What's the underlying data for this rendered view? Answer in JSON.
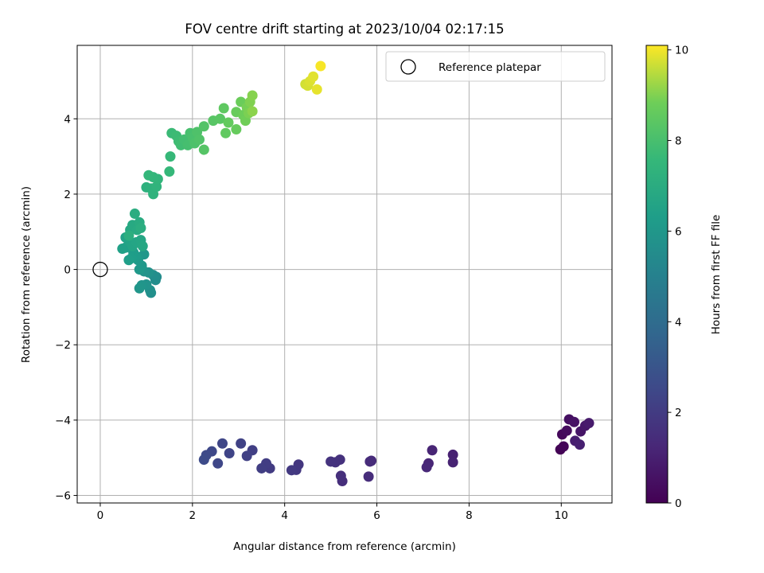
{
  "chart_data": {
    "type": "scatter",
    "title": "FOV centre drift starting at 2023/10/04 02:17:15",
    "xlabel": "Angular distance from reference (arcmin)",
    "ylabel": "Rotation from reference (arcmin)",
    "xlim": [
      -0.5,
      11.1
    ],
    "ylim": [
      -6.2,
      5.95
    ],
    "x_ticks": [
      0,
      2,
      4,
      6,
      8,
      10
    ],
    "y_ticks": [
      -6,
      -4,
      -2,
      0,
      2,
      4
    ],
    "x_tick_labels": [
      "0",
      "2",
      "4",
      "6",
      "8",
      "10"
    ],
    "y_tick_labels": [
      "−6",
      "−4",
      "−2",
      "0",
      "2",
      "4"
    ],
    "grid": true,
    "legend_position": "top-right",
    "reference": {
      "name": "Reference platepar",
      "x": 0,
      "y": 0
    },
    "colorbar": {
      "label": "Hours from first FF file",
      "range": [
        0,
        10.1
      ],
      "ticks": [
        0,
        2,
        4,
        6,
        8,
        10
      ],
      "tick_labels": [
        "0",
        "2",
        "4",
        "6",
        "8",
        "10"
      ],
      "colormap": "viridis"
    },
    "series": [
      {
        "points": [
          {
            "x": 9.98,
            "y": -4.78,
            "h": 0.05
          },
          {
            "x": 10.05,
            "y": -4.7,
            "h": 0.15
          },
          {
            "x": 10.02,
            "y": -4.38,
            "h": 0.25
          },
          {
            "x": 10.12,
            "y": -4.28,
            "h": 0.35
          },
          {
            "x": 10.17,
            "y": -3.98,
            "h": 0.45
          },
          {
            "x": 10.28,
            "y": -4.05,
            "h": 0.55
          },
          {
            "x": 10.42,
            "y": -4.3,
            "h": 0.65
          },
          {
            "x": 10.52,
            "y": -4.15,
            "h": 0.75
          },
          {
            "x": 10.6,
            "y": -4.08,
            "h": 0.85
          },
          {
            "x": 10.3,
            "y": -4.55,
            "h": 0.95
          },
          {
            "x": 10.4,
            "y": -4.65,
            "h": 1.0
          },
          {
            "x": 7.65,
            "y": -4.92,
            "h": 1.05
          },
          {
            "x": 7.65,
            "y": -5.12,
            "h": 1.1
          },
          {
            "x": 7.2,
            "y": -4.8,
            "h": 1.15
          },
          {
            "x": 7.12,
            "y": -5.15,
            "h": 1.2
          },
          {
            "x": 7.08,
            "y": -5.25,
            "h": 1.25
          },
          {
            "x": 5.88,
            "y": -5.08,
            "h": 1.35
          },
          {
            "x": 5.85,
            "y": -5.1,
            "h": 1.4
          },
          {
            "x": 5.82,
            "y": -5.5,
            "h": 1.45
          },
          {
            "x": 5.25,
            "y": -5.62,
            "h": 1.5
          },
          {
            "x": 5.22,
            "y": -5.48,
            "h": 1.55
          },
          {
            "x": 5.2,
            "y": -5.05,
            "h": 1.6
          },
          {
            "x": 5.1,
            "y": -5.12,
            "h": 1.65
          },
          {
            "x": 5.0,
            "y": -5.1,
            "h": 1.7
          },
          {
            "x": 4.3,
            "y": -5.18,
            "h": 1.8
          },
          {
            "x": 4.25,
            "y": -5.32,
            "h": 1.85
          },
          {
            "x": 4.15,
            "y": -5.33,
            "h": 1.9
          },
          {
            "x": 3.68,
            "y": -5.28,
            "h": 2.0
          },
          {
            "x": 3.6,
            "y": -5.15,
            "h": 2.05
          },
          {
            "x": 3.5,
            "y": -5.28,
            "h": 2.1
          },
          {
            "x": 3.3,
            "y": -4.8,
            "h": 2.15
          },
          {
            "x": 3.18,
            "y": -4.95,
            "h": 2.2
          },
          {
            "x": 3.05,
            "y": -4.62,
            "h": 2.25
          },
          {
            "x": 2.8,
            "y": -4.88,
            "h": 2.35
          },
          {
            "x": 2.65,
            "y": -4.62,
            "h": 2.4
          },
          {
            "x": 2.55,
            "y": -5.15,
            "h": 2.45
          },
          {
            "x": 2.42,
            "y": -4.83,
            "h": 2.5
          },
          {
            "x": 2.3,
            "y": -4.93,
            "h": 2.55
          },
          {
            "x": 2.25,
            "y": -5.05,
            "h": 2.6
          },
          {
            "x": 1.22,
            "y": -0.2,
            "h": 5.5
          },
          {
            "x": 1.2,
            "y": -0.28,
            "h": 5.55
          },
          {
            "x": 1.15,
            "y": -0.15,
            "h": 5.6
          },
          {
            "x": 1.1,
            "y": -0.62,
            "h": 5.65
          },
          {
            "x": 1.08,
            "y": -0.55,
            "h": 5.7
          },
          {
            "x": 1.05,
            "y": -0.08,
            "h": 5.75
          },
          {
            "x": 1.0,
            "y": -0.4,
            "h": 5.8
          },
          {
            "x": 0.95,
            "y": -0.05,
            "h": 5.85
          },
          {
            "x": 0.9,
            "y": -0.42,
            "h": 5.9
          },
          {
            "x": 0.85,
            "y": -0.5,
            "h": 5.95
          },
          {
            "x": 0.95,
            "y": 0.4,
            "h": 6.0
          },
          {
            "x": 0.9,
            "y": 0.1,
            "h": 6.05
          },
          {
            "x": 0.85,
            "y": 0.0,
            "h": 6.1
          },
          {
            "x": 0.82,
            "y": 0.25,
            "h": 6.15
          },
          {
            "x": 0.78,
            "y": 0.35,
            "h": 6.2
          },
          {
            "x": 0.72,
            "y": 0.45,
            "h": 6.25
          },
          {
            "x": 0.68,
            "y": 0.3,
            "h": 6.3
          },
          {
            "x": 0.62,
            "y": 0.25,
            "h": 6.35
          },
          {
            "x": 0.55,
            "y": 0.58,
            "h": 6.4
          },
          {
            "x": 0.48,
            "y": 0.55,
            "h": 6.45
          },
          {
            "x": 0.55,
            "y": 0.85,
            "h": 6.5
          },
          {
            "x": 0.62,
            "y": 0.75,
            "h": 6.55
          },
          {
            "x": 0.7,
            "y": 0.62,
            "h": 6.6
          },
          {
            "x": 0.78,
            "y": 0.72,
            "h": 6.65
          },
          {
            "x": 0.88,
            "y": 0.78,
            "h": 6.7
          },
          {
            "x": 0.92,
            "y": 0.62,
            "h": 6.75
          },
          {
            "x": 0.65,
            "y": 1.05,
            "h": 6.8
          },
          {
            "x": 0.7,
            "y": 1.18,
            "h": 6.85
          },
          {
            "x": 0.8,
            "y": 1.05,
            "h": 6.9
          },
          {
            "x": 0.85,
            "y": 1.25,
            "h": 6.95
          },
          {
            "x": 0.75,
            "y": 1.48,
            "h": 7.0
          },
          {
            "x": 0.88,
            "y": 1.1,
            "h": 7.05
          },
          {
            "x": 0.62,
            "y": 0.9,
            "h": 7.1
          },
          {
            "x": 1.0,
            "y": 2.18,
            "h": 7.2
          },
          {
            "x": 1.1,
            "y": 2.15,
            "h": 7.25
          },
          {
            "x": 1.15,
            "y": 2.0,
            "h": 7.3
          },
          {
            "x": 1.22,
            "y": 2.2,
            "h": 7.35
          },
          {
            "x": 1.25,
            "y": 2.4,
            "h": 7.4
          },
          {
            "x": 1.15,
            "y": 2.45,
            "h": 7.45
          },
          {
            "x": 1.05,
            "y": 2.5,
            "h": 7.5
          },
          {
            "x": 1.5,
            "y": 2.6,
            "h": 7.55
          },
          {
            "x": 1.52,
            "y": 3.0,
            "h": 7.6
          },
          {
            "x": 1.55,
            "y": 3.62,
            "h": 7.7
          },
          {
            "x": 1.65,
            "y": 3.55,
            "h": 7.75
          },
          {
            "x": 1.7,
            "y": 3.4,
            "h": 7.8
          },
          {
            "x": 1.75,
            "y": 3.3,
            "h": 7.85
          },
          {
            "x": 1.82,
            "y": 3.45,
            "h": 7.9
          },
          {
            "x": 1.9,
            "y": 3.3,
            "h": 7.95
          },
          {
            "x": 1.95,
            "y": 3.62,
            "h": 8.0
          },
          {
            "x": 2.0,
            "y": 3.5,
            "h": 8.05
          },
          {
            "x": 2.05,
            "y": 3.35,
            "h": 8.1
          },
          {
            "x": 2.1,
            "y": 3.65,
            "h": 8.15
          },
          {
            "x": 2.15,
            "y": 3.45,
            "h": 8.2
          },
          {
            "x": 2.25,
            "y": 3.8,
            "h": 8.25
          },
          {
            "x": 2.25,
            "y": 3.18,
            "h": 8.3
          },
          {
            "x": 2.45,
            "y": 3.95,
            "h": 8.35
          },
          {
            "x": 2.6,
            "y": 4.0,
            "h": 8.4
          },
          {
            "x": 2.68,
            "y": 4.28,
            "h": 8.5
          },
          {
            "x": 2.72,
            "y": 3.62,
            "h": 8.55
          },
          {
            "x": 2.78,
            "y": 3.9,
            "h": 8.6
          },
          {
            "x": 2.95,
            "y": 3.72,
            "h": 8.65
          },
          {
            "x": 2.95,
            "y": 4.18,
            "h": 8.7
          },
          {
            "x": 3.05,
            "y": 4.45,
            "h": 8.75
          },
          {
            "x": 3.1,
            "y": 4.1,
            "h": 8.8
          },
          {
            "x": 3.15,
            "y": 3.95,
            "h": 8.85
          },
          {
            "x": 3.18,
            "y": 4.3,
            "h": 8.9
          },
          {
            "x": 3.22,
            "y": 4.15,
            "h": 8.95
          },
          {
            "x": 3.25,
            "y": 4.45,
            "h": 9.0
          },
          {
            "x": 3.3,
            "y": 4.62,
            "h": 9.05
          },
          {
            "x": 3.3,
            "y": 4.2,
            "h": 9.1
          },
          {
            "x": 4.45,
            "y": 4.92,
            "h": 9.7
          },
          {
            "x": 4.5,
            "y": 4.88,
            "h": 9.75
          },
          {
            "x": 4.55,
            "y": 5.0,
            "h": 9.8
          },
          {
            "x": 4.62,
            "y": 5.12,
            "h": 9.85
          },
          {
            "x": 4.7,
            "y": 4.78,
            "h": 9.9
          },
          {
            "x": 4.78,
            "y": 5.4,
            "h": 10.05
          }
        ]
      }
    ]
  }
}
